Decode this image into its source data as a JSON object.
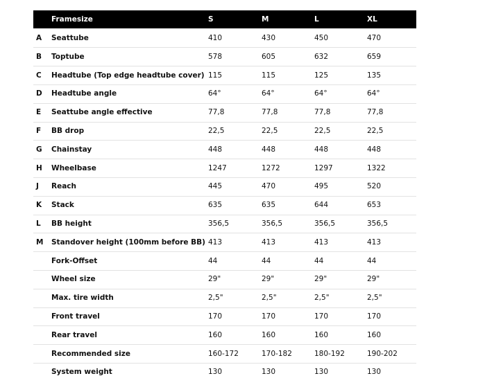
{
  "table": {
    "header": [
      "Framesize",
      "S",
      "M",
      "L",
      "XL"
    ],
    "rows": [
      {
        "letter": "A",
        "label": "Seattube",
        "values": [
          "410",
          "430",
          "450",
          "470"
        ]
      },
      {
        "letter": "B",
        "label": "Toptube",
        "values": [
          "578",
          "605",
          "632",
          "659"
        ]
      },
      {
        "letter": "C",
        "label": "Headtube (Top edge headtube cover)",
        "values": [
          "115",
          "115",
          "125",
          "135"
        ]
      },
      {
        "letter": "D",
        "label": "Headtube angle",
        "values": [
          "64°",
          "64°",
          "64°",
          "64°"
        ]
      },
      {
        "letter": "E",
        "label": "Seattube angle effective",
        "values": [
          "77,8",
          "77,8",
          "77,8",
          "77,8"
        ]
      },
      {
        "letter": "F",
        "label": "BB drop",
        "values": [
          "22,5",
          "22,5",
          "22,5",
          "22,5"
        ]
      },
      {
        "letter": "G",
        "label": "Chainstay",
        "values": [
          "448",
          "448",
          "448",
          "448"
        ]
      },
      {
        "letter": "H",
        "label": "Wheelbase",
        "values": [
          "1247",
          "1272",
          "1297",
          "1322"
        ]
      },
      {
        "letter": "J",
        "label": "Reach",
        "values": [
          "445",
          "470",
          "495",
          "520"
        ]
      },
      {
        "letter": "K",
        "label": "Stack",
        "values": [
          "635",
          "635",
          "644",
          "653"
        ]
      },
      {
        "letter": "L",
        "label": "BB height",
        "values": [
          "356,5",
          "356,5",
          "356,5",
          "356,5"
        ]
      },
      {
        "letter": "M",
        "label": "Standover height (100mm before BB)",
        "values": [
          "413",
          "413",
          "413",
          "413"
        ]
      },
      {
        "label": "Fork-Offset",
        "values": [
          "44",
          "44",
          "44",
          "44"
        ]
      },
      {
        "label": "Wheel size",
        "values": [
          "29\"",
          "29\"",
          "29\"",
          "29\""
        ]
      },
      {
        "label": "Max. tire width",
        "values": [
          "2,5\"",
          "2,5\"",
          "2,5\"",
          "2,5\""
        ]
      },
      {
        "label": "Front travel",
        "values": [
          "170",
          "170",
          "170",
          "170"
        ]
      },
      {
        "label": "Rear travel",
        "values": [
          "160",
          "160",
          "160",
          "160"
        ]
      },
      {
        "label": "Recommended size",
        "values": [
          "160-172",
          "170-182",
          "180-192",
          "190-202"
        ]
      },
      {
        "label": "System weight",
        "values": [
          "130",
          "130",
          "130",
          "130"
        ]
      }
    ]
  }
}
